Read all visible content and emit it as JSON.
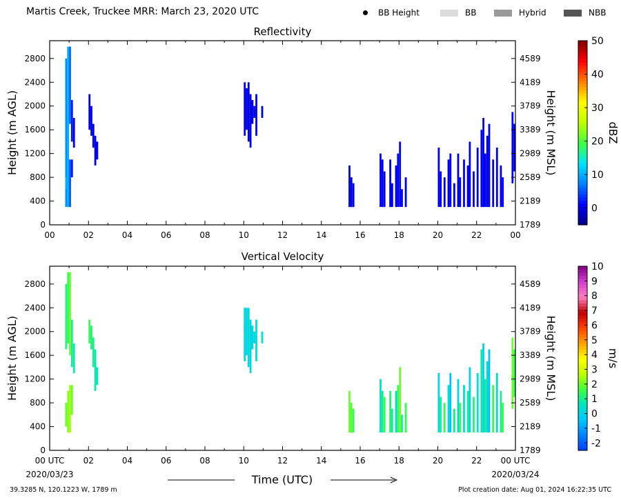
{
  "header": {
    "title": "Martis Creek, Truckee MRR:  March 23, 2020 UTC"
  },
  "legend": [
    {
      "label": "BB Height",
      "kind": "dot",
      "color": "#000000"
    },
    {
      "label": "BB",
      "kind": "swatch",
      "color": "#dcdcdc"
    },
    {
      "label": "Hybrid",
      "kind": "swatch",
      "color": "#9a9a9a"
    },
    {
      "label": "NBB",
      "kind": "swatch",
      "color": "#555555"
    }
  ],
  "footer": {
    "location": "39.3285 N, 120.1223 W, 1789 m",
    "creation": "Plot creation date: Aug 01, 2024 16:22:35 UTC",
    "time_label": "Time (UTC)",
    "start_tick": "00 UTC",
    "end_tick": "00 UTC",
    "start_date": "2020/03/23",
    "end_date": "2020/03/24"
  },
  "chart_data": [
    {
      "type": "heatmap",
      "title": "Reflectivity",
      "ylabel": "Height (m AGL)",
      "y2label": "Height (m MSL)",
      "xlim": [
        0,
        24
      ],
      "ylim": [
        0,
        3100
      ],
      "x_ticks": [
        "00",
        "02",
        "04",
        "06",
        "08",
        "10",
        "12",
        "14",
        "16",
        "18",
        "20",
        "22",
        "00"
      ],
      "y_ticks": [
        0,
        400,
        800,
        1200,
        1600,
        2000,
        2400,
        2800
      ],
      "y2_ticks": [
        1789,
        2189,
        2589,
        2989,
        3389,
        3789,
        4189,
        4589
      ],
      "colorbar": {
        "label": "dBZ",
        "min": -5,
        "max": 50,
        "ticks": [
          0,
          10,
          20,
          30,
          40,
          50
        ],
        "colormap": [
          "#00007f",
          "#0000ff",
          "#0080ff",
          "#00e5ff",
          "#40ff40",
          "#c0ff00",
          "#ffff00",
          "#ff8000",
          "#ff0000",
          "#7f0000"
        ]
      },
      "cells": [
        [
          0.85,
          300,
          2800,
          8
        ],
        [
          0.95,
          300,
          3000,
          10
        ],
        [
          1.05,
          1700,
          3000,
          6
        ],
        [
          1.15,
          1400,
          2100,
          2
        ],
        [
          1.25,
          1300,
          1800,
          0
        ],
        [
          0.85,
          600,
          800,
          10
        ],
        [
          0.95,
          300,
          1100,
          10
        ],
        [
          1.05,
          300,
          1100,
          5
        ],
        [
          1.15,
          800,
          1100,
          2
        ],
        [
          2.05,
          1600,
          2200,
          0
        ],
        [
          2.15,
          1500,
          2000,
          0
        ],
        [
          2.25,
          1300,
          1700,
          0
        ],
        [
          2.35,
          1000,
          1500,
          0
        ],
        [
          2.45,
          1100,
          1400,
          0
        ],
        [
          10.05,
          1500,
          2400,
          0
        ],
        [
          10.15,
          1600,
          2300,
          0
        ],
        [
          10.25,
          1400,
          2400,
          0
        ],
        [
          10.35,
          1300,
          2200,
          0
        ],
        [
          10.45,
          1700,
          2100,
          0
        ],
        [
          10.55,
          1800,
          2000,
          0
        ],
        [
          10.65,
          1500,
          2200,
          0
        ],
        [
          10.95,
          1800,
          2000,
          0
        ],
        [
          15.45,
          300,
          1000,
          0
        ],
        [
          15.55,
          300,
          800,
          0
        ],
        [
          15.65,
          300,
          700,
          0
        ],
        [
          17.05,
          300,
          1200,
          0
        ],
        [
          17.15,
          300,
          1100,
          1
        ],
        [
          17.25,
          300,
          900,
          0
        ],
        [
          17.55,
          300,
          1100,
          0
        ],
        [
          17.65,
          300,
          700,
          0
        ],
        [
          17.85,
          300,
          1000,
          0
        ],
        [
          17.95,
          300,
          1200,
          1
        ],
        [
          18.05,
          300,
          1400,
          1
        ],
        [
          18.15,
          300,
          600,
          0
        ],
        [
          18.35,
          300,
          800,
          0
        ],
        [
          20.05,
          300,
          1300,
          0
        ],
        [
          20.15,
          300,
          900,
          0
        ],
        [
          20.35,
          300,
          800,
          0
        ],
        [
          20.55,
          300,
          1100,
          0
        ],
        [
          20.65,
          300,
          1200,
          1
        ],
        [
          20.85,
          300,
          700,
          0
        ],
        [
          21.05,
          300,
          1200,
          0
        ],
        [
          21.15,
          300,
          800,
          0
        ],
        [
          21.35,
          300,
          1100,
          1
        ],
        [
          21.55,
          300,
          1000,
          0
        ],
        [
          21.65,
          300,
          1400,
          1
        ],
        [
          21.85,
          300,
          900,
          0
        ],
        [
          22.05,
          300,
          1300,
          0
        ],
        [
          22.25,
          300,
          1600,
          1
        ],
        [
          22.35,
          300,
          1800,
          0
        ],
        [
          22.45,
          300,
          1200,
          1
        ],
        [
          22.55,
          300,
          1500,
          0
        ],
        [
          22.65,
          300,
          1700,
          0
        ],
        [
          22.85,
          300,
          1100,
          0
        ],
        [
          23.05,
          300,
          1300,
          1
        ],
        [
          23.25,
          300,
          1000,
          0
        ],
        [
          23.35,
          300,
          800,
          1
        ],
        [
          23.85,
          700,
          1900,
          1
        ],
        [
          23.95,
          900,
          1700,
          0
        ]
      ]
    },
    {
      "type": "heatmap",
      "title": "Vertical Velocity",
      "ylabel": "Height (m AGL)",
      "y2label": "Height (m MSL)",
      "xlim": [
        0,
        24
      ],
      "ylim": [
        0,
        3100
      ],
      "x_ticks": [
        "00 UTC",
        "02",
        "04",
        "06",
        "08",
        "10",
        "12",
        "14",
        "16",
        "18",
        "20",
        "22",
        "00 UTC"
      ],
      "y_ticks": [
        0,
        400,
        800,
        1200,
        1600,
        2000,
        2400,
        2800
      ],
      "y2_ticks": [
        1789,
        2189,
        2589,
        2989,
        3389,
        3789,
        4189,
        4589
      ],
      "colorbar": {
        "label": "m/s",
        "min": -2.5,
        "max": 10,
        "ticks": [
          -2,
          -1,
          0,
          1,
          2,
          3,
          4,
          5,
          6,
          7,
          8,
          9,
          10
        ],
        "colormap": [
          "#0040ff",
          "#0080ff",
          "#00c8ff",
          "#00e5c0",
          "#40ff40",
          "#c0ff00",
          "#ffff00",
          "#ffa000",
          "#ff4000",
          "#c00000",
          "#ff80c0",
          "#d040d0",
          "#800080"
        ]
      },
      "cells": [
        [
          0.85,
          1700,
          2800,
          1.2
        ],
        [
          0.95,
          1800,
          3000,
          1.5
        ],
        [
          1.05,
          1600,
          3000,
          2.0
        ],
        [
          1.15,
          1400,
          2200,
          1.0
        ],
        [
          1.25,
          1300,
          1800,
          0.8
        ],
        [
          0.85,
          400,
          800,
          2.0
        ],
        [
          0.95,
          300,
          1000,
          2.2
        ],
        [
          1.05,
          300,
          1100,
          2.5
        ],
        [
          1.15,
          600,
          1100,
          2.0
        ],
        [
          2.05,
          1800,
          2200,
          1.5
        ],
        [
          2.15,
          1700,
          2100,
          1.2
        ],
        [
          2.25,
          1400,
          1900,
          1.0
        ],
        [
          2.35,
          1000,
          1700,
          0.8
        ],
        [
          2.45,
          1100,
          1400,
          0.6
        ],
        [
          10.05,
          1500,
          2400,
          0.2
        ],
        [
          10.15,
          1600,
          2400,
          0.0
        ],
        [
          10.25,
          1400,
          2400,
          0.3
        ],
        [
          10.35,
          1300,
          2200,
          0.0
        ],
        [
          10.45,
          1700,
          2100,
          0.2
        ],
        [
          10.55,
          1800,
          2000,
          0.0
        ],
        [
          10.65,
          1500,
          2200,
          0.4
        ],
        [
          10.95,
          1800,
          2000,
          0.5
        ],
        [
          15.45,
          300,
          1000,
          2.0
        ],
        [
          15.55,
          300,
          800,
          1.8
        ],
        [
          15.65,
          300,
          700,
          1.5
        ],
        [
          17.05,
          300,
          1200,
          0.5
        ],
        [
          17.15,
          300,
          1000,
          1.0
        ],
        [
          17.25,
          300,
          900,
          1.5
        ],
        [
          17.55,
          300,
          1000,
          1.2
        ],
        [
          17.65,
          300,
          700,
          1.0
        ],
        [
          17.85,
          300,
          1000,
          0.4
        ],
        [
          17.95,
          300,
          1100,
          1.5
        ],
        [
          18.05,
          300,
          1400,
          2.0
        ],
        [
          18.15,
          300,
          600,
          1.0
        ],
        [
          18.35,
          300,
          800,
          1.5
        ],
        [
          20.05,
          300,
          1300,
          0.0
        ],
        [
          20.15,
          300,
          900,
          1.0
        ],
        [
          20.35,
          300,
          800,
          1.5
        ],
        [
          20.55,
          300,
          1100,
          0.5
        ],
        [
          20.65,
          300,
          1300,
          -0.5
        ],
        [
          20.85,
          300,
          700,
          1.0
        ],
        [
          21.05,
          300,
          1200,
          0.0
        ],
        [
          21.15,
          300,
          800,
          1.5
        ],
        [
          21.35,
          300,
          1100,
          0.5
        ],
        [
          21.55,
          300,
          1000,
          1.0
        ],
        [
          21.65,
          300,
          1400,
          0.0
        ],
        [
          21.85,
          300,
          900,
          1.2
        ],
        [
          22.05,
          300,
          1300,
          0.5
        ],
        [
          22.25,
          300,
          1700,
          0.8
        ],
        [
          22.35,
          300,
          1800,
          0.0
        ],
        [
          22.45,
          300,
          1200,
          1.0
        ],
        [
          22.55,
          300,
          1500,
          0.3
        ],
        [
          22.65,
          300,
          1700,
          -0.5
        ],
        [
          22.85,
          300,
          1100,
          1.5
        ],
        [
          23.05,
          300,
          1300,
          0.5
        ],
        [
          23.25,
          300,
          1000,
          1.0
        ],
        [
          23.35,
          300,
          800,
          1.5
        ],
        [
          23.85,
          700,
          1900,
          2.0
        ],
        [
          23.95,
          900,
          1700,
          1.5
        ]
      ]
    }
  ]
}
